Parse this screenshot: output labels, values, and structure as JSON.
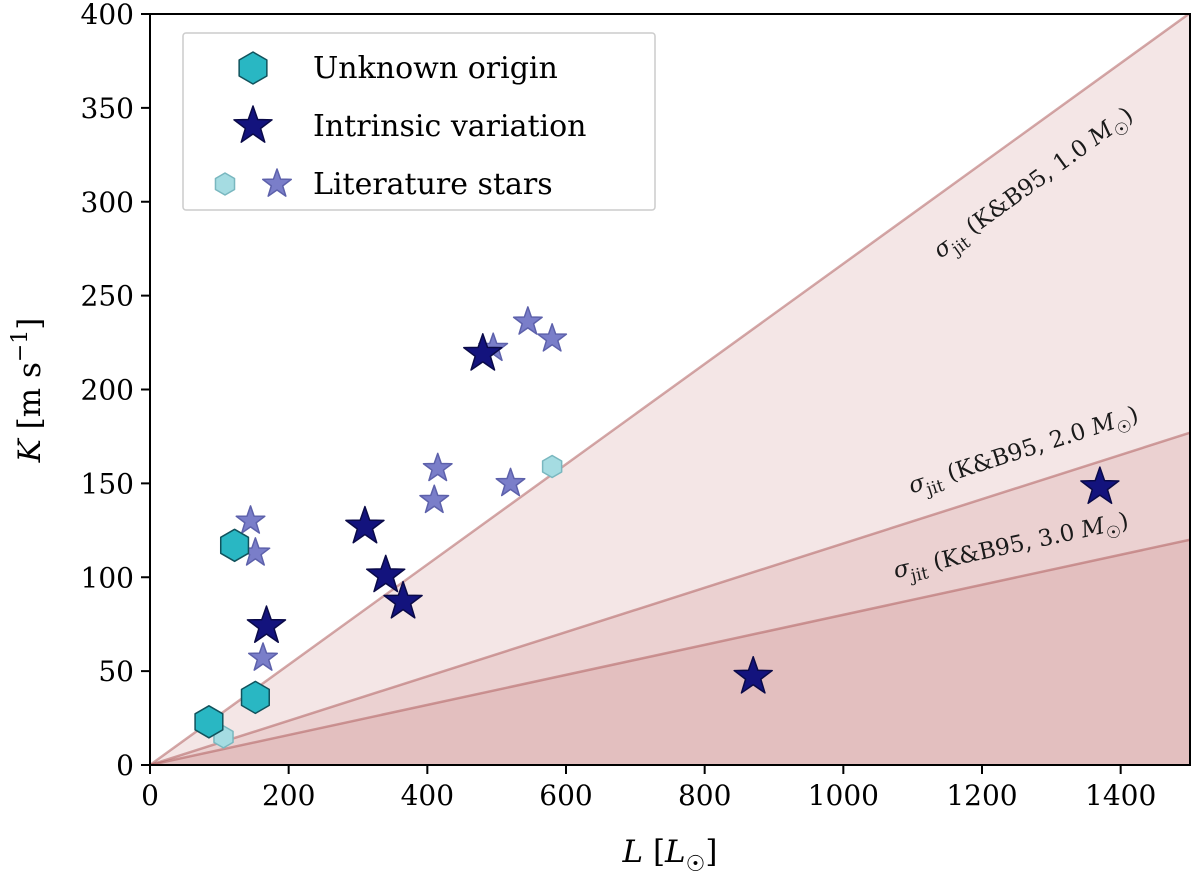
{
  "figure": {
    "background": "#ffffff",
    "text_color": "#000000"
  },
  "chart_data": {
    "type": "scatter",
    "title": "",
    "xlabel": "L [L☉]",
    "ylabel": "K [m s⁻¹]",
    "xlabel_parts": [
      {
        "t": "L",
        "i": 1
      },
      {
        "t": " ["
      },
      {
        "t": "L",
        "i": 1
      },
      {
        "t": "☉",
        "sub": 1
      },
      {
        "t": "]"
      }
    ],
    "ylabel_parts": [
      {
        "t": "K",
        "i": 1
      },
      {
        "t": " [m s"
      },
      {
        "t": "−1",
        "sup": 1
      },
      {
        "t": "]"
      }
    ],
    "xlim": [
      0,
      1500
    ],
    "ylim": [
      0,
      400
    ],
    "xticks": [
      0,
      200,
      400,
      600,
      800,
      1000,
      1200,
      1400
    ],
    "yticks": [
      0,
      50,
      100,
      150,
      200,
      250,
      300,
      350,
      400
    ],
    "grid": false,
    "region_fill": "rgba(187,107,107,0.17)",
    "region_edge": "rgba(176,96,96,0.55)",
    "jitter_regions": [
      {
        "name": "sigma_jit K&B95 1.0 Msun",
        "slope": 0.267,
        "label_anchor": [
          1280,
          307
        ],
        "label_parts": [
          {
            "t": "σ",
            "i": 1
          },
          {
            "t": "jit",
            "sub": 1
          },
          {
            "t": " (K&B95, 1.0 "
          },
          {
            "t": "M",
            "i": 1
          },
          {
            "t": "☉",
            "sub": 1
          },
          {
            "t": ")"
          }
        ]
      },
      {
        "name": "sigma_jit K&B95 2.0 Msun",
        "slope": 0.118,
        "label_anchor": [
          1263,
          164
        ],
        "label_parts": [
          {
            "t": "σ",
            "i": 1
          },
          {
            "t": "jit",
            "sub": 1
          },
          {
            "t": " (K&B95, 2.0 "
          },
          {
            "t": "M",
            "i": 1
          },
          {
            "t": "☉",
            "sub": 1
          },
          {
            "t": ")"
          }
        ]
      },
      {
        "name": "sigma_jit K&B95 3.0 Msun",
        "slope": 0.08,
        "label_anchor": [
          1244,
          113
        ],
        "label_parts": [
          {
            "t": "σ",
            "i": 1
          },
          {
            "t": "jit",
            "sub": 1
          },
          {
            "t": " (K&B95, 3.0 "
          },
          {
            "t": "M",
            "i": 1
          },
          {
            "t": "☉",
            "sub": 1
          },
          {
            "t": ")"
          }
        ]
      }
    ],
    "series": [
      {
        "name": "Literature stars (hexagons)",
        "marker": "hexagon",
        "color": "#a5dce2",
        "edge": "#79b7bf",
        "size": 11,
        "points": [
          [
            106,
            15
          ],
          [
            580,
            159
          ]
        ]
      },
      {
        "name": "Literature stars (stars)",
        "marker": "star",
        "color": "#7a7ec9",
        "edge": "#5d61ab",
        "size": 15,
        "points": [
          [
            145,
            130
          ],
          [
            152,
            113
          ],
          [
            163,
            57
          ],
          [
            410,
            141
          ],
          [
            415,
            158
          ],
          [
            495,
            222
          ],
          [
            520,
            150
          ],
          [
            545,
            236
          ],
          [
            580,
            227
          ]
        ]
      },
      {
        "name": "Unknown origin",
        "marker": "hexagon",
        "color": "#29b7c3",
        "edge": "#11525c",
        "size": 16,
        "points": [
          [
            85,
            23
          ],
          [
            122,
            117
          ],
          [
            152,
            36
          ]
        ]
      },
      {
        "name": "Intrinsic variation",
        "marker": "star",
        "color": "#13137d",
        "edge": "#0a0a48",
        "size": 20,
        "points": [
          [
            168,
            74
          ],
          [
            310,
            127
          ],
          [
            340,
            101
          ],
          [
            365,
            87
          ],
          [
            480,
            219
          ],
          [
            870,
            47
          ],
          [
            1370,
            148
          ]
        ]
      }
    ],
    "legend": {
      "position": "upper left",
      "background": "#ffffff",
      "border_color": "#cccccc",
      "items": [
        {
          "label": "Unknown origin",
          "markers": [
            {
              "shape": "hexagon",
              "color": "#29b7c3",
              "edge": "#11525c",
              "size": 16
            }
          ]
        },
        {
          "label": "Intrinsic variation",
          "markers": [
            {
              "shape": "star",
              "color": "#13137d",
              "edge": "#0a0a48",
              "size": 20
            }
          ]
        },
        {
          "label": "Literature stars",
          "markers": [
            {
              "shape": "hexagon",
              "color": "#a5dce2",
              "edge": "#79b7bf",
              "size": 11
            },
            {
              "shape": "star",
              "color": "#7a7ec9",
              "edge": "#5d61ab",
              "size": 15
            }
          ]
        }
      ]
    }
  }
}
